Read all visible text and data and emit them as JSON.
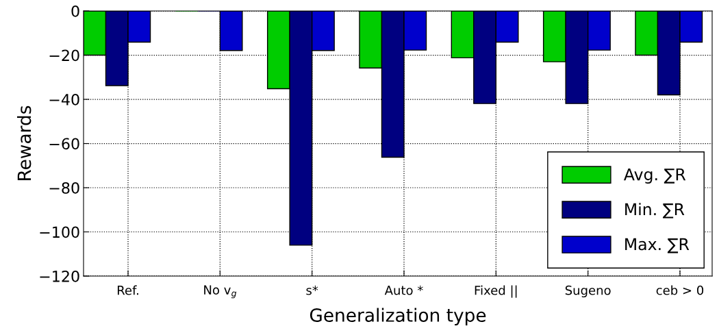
{
  "chart_data": {
    "type": "bar",
    "xlabel": "Generalization type",
    "ylabel": "Rewards",
    "categories": [
      "Ref.",
      "No v$_{g}$",
      "s*",
      "Auto *",
      "Fixed ||",
      "Sugeno",
      "ceb > 0"
    ],
    "series": [
      {
        "name": "Avg. ∑R",
        "color": "#00cc00",
        "values": [
          -20,
          0,
          -35.2,
          -25.8,
          -21.2,
          -23,
          -20
        ]
      },
      {
        "name": "Min. ∑R",
        "color": "#000080",
        "values": [
          -33.8,
          0,
          -106,
          -66.2,
          -41.9,
          -41.9,
          -38
        ]
      },
      {
        "name": "Max. ∑R",
        "color": "#0000cc",
        "values": [
          -14.1,
          -17.9,
          -17.9,
          -17.7,
          -14.1,
          -17.7,
          -14.1
        ]
      }
    ],
    "ylim": [
      -120,
      0
    ],
    "yticks": [
      {
        "value": -120,
        "label": "−120"
      },
      {
        "value": -100,
        "label": "−100"
      },
      {
        "value": -80,
        "label": "−80"
      },
      {
        "value": -60,
        "label": "−60"
      },
      {
        "value": -40,
        "label": "−40"
      },
      {
        "value": -20,
        "label": "−20"
      },
      0
    ],
    "grid": true,
    "legend": "bottom right"
  }
}
